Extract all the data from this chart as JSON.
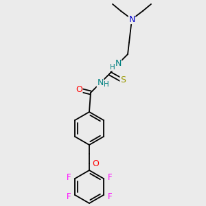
{
  "bg_color": "#ebebeb",
  "atom_colors": {
    "N": "#0000CC",
    "O": "#FF0000",
    "S": "#999900",
    "F": "#FF00FF",
    "NH": "#008080",
    "C": "#000000"
  },
  "figsize": [
    3.0,
    3.0
  ],
  "dpi": 100
}
